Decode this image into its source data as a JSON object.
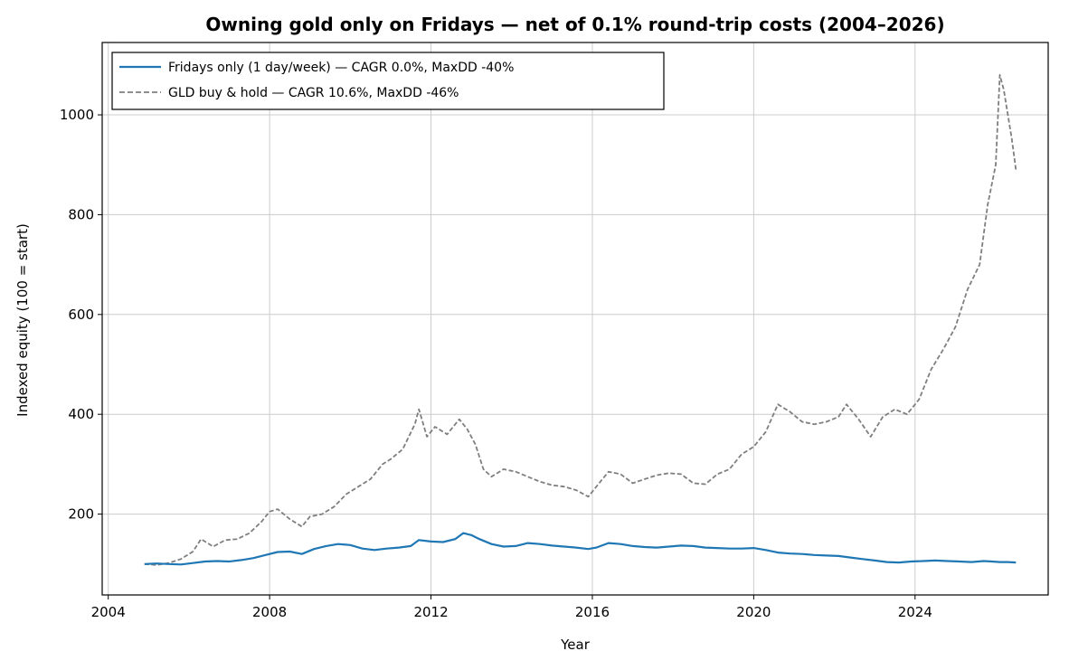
{
  "chart_data": {
    "type": "line",
    "title": "Owning gold only on Fridays — net of 0.1% round-trip costs (2004–2026)",
    "xlabel": "Year",
    "ylabel": "Indexed equity (100 = start)",
    "xlim": [
      2003.85,
      2027.3
    ],
    "ylim": [
      38,
      1145
    ],
    "x_ticks": [
      2004,
      2008,
      2012,
      2016,
      2020,
      2024
    ],
    "y_ticks": [
      200,
      400,
      600,
      800,
      1000
    ],
    "grid": true,
    "legend_position": "top-left",
    "series": [
      {
        "name": "Fridays only (1 day/week) — CAGR 0.0%, MaxDD -40%",
        "color": "#1f77b4",
        "style": "solid",
        "x": [
          2004.9,
          2005.2,
          2005.5,
          2005.8,
          2006.1,
          2006.4,
          2006.7,
          2007.0,
          2007.3,
          2007.6,
          2007.9,
          2008.2,
          2008.5,
          2008.8,
          2009.1,
          2009.4,
          2009.7,
          2010.0,
          2010.3,
          2010.6,
          2010.9,
          2011.2,
          2011.5,
          2011.7,
          2012.0,
          2012.3,
          2012.6,
          2012.8,
          2013.0,
          2013.2,
          2013.5,
          2013.8,
          2014.1,
          2014.4,
          2014.7,
          2015.0,
          2015.3,
          2015.6,
          2015.9,
          2016.1,
          2016.4,
          2016.7,
          2017.0,
          2017.3,
          2017.6,
          2017.9,
          2018.2,
          2018.5,
          2018.8,
          2019.1,
          2019.4,
          2019.7,
          2020.0,
          2020.3,
          2020.6,
          2020.9,
          2021.2,
          2021.5,
          2021.8,
          2022.1,
          2022.4,
          2022.7,
          2023.0,
          2023.3,
          2023.6,
          2023.9,
          2024.2,
          2024.5,
          2024.8,
          2025.1,
          2025.4,
          2025.7,
          2025.9,
          2026.1,
          2026.3,
          2026.5
        ],
        "y": [
          100,
          101,
          100,
          99,
          102,
          105,
          106,
          105,
          108,
          112,
          118,
          124,
          125,
          120,
          130,
          136,
          140,
          138,
          131,
          128,
          131,
          133,
          136,
          148,
          145,
          144,
          150,
          162,
          158,
          150,
          140,
          135,
          136,
          142,
          140,
          137,
          135,
          133,
          130,
          133,
          142,
          140,
          136,
          134,
          133,
          135,
          137,
          136,
          133,
          132,
          131,
          131,
          132,
          128,
          123,
          121,
          120,
          118,
          117,
          116,
          113,
          110,
          107,
          104,
          103,
          105,
          106,
          107,
          106,
          105,
          104,
          106,
          105,
          104,
          104,
          103
        ]
      },
      {
        "name": "GLD buy & hold — CAGR 10.6%, MaxDD -46%",
        "color": "#7f7f7f",
        "style": "dashed",
        "x": [
          2004.9,
          2005.2,
          2005.5,
          2005.8,
          2006.1,
          2006.3,
          2006.6,
          2006.9,
          2007.2,
          2007.5,
          2007.8,
          2008.0,
          2008.2,
          2008.5,
          2008.8,
          2009.0,
          2009.3,
          2009.6,
          2009.9,
          2010.2,
          2010.5,
          2010.8,
          2011.0,
          2011.3,
          2011.6,
          2011.7,
          2011.9,
          2012.1,
          2012.4,
          2012.7,
          2012.9,
          2013.1,
          2013.3,
          2013.5,
          2013.8,
          2014.1,
          2014.4,
          2014.7,
          2015.0,
          2015.3,
          2015.6,
          2015.9,
          2016.1,
          2016.4,
          2016.7,
          2017.0,
          2017.3,
          2017.6,
          2017.9,
          2018.2,
          2018.5,
          2018.8,
          2019.1,
          2019.4,
          2019.7,
          2020.0,
          2020.3,
          2020.6,
          2020.9,
          2021.2,
          2021.5,
          2021.8,
          2022.1,
          2022.3,
          2022.6,
          2022.9,
          2023.2,
          2023.5,
          2023.8,
          2024.1,
          2024.4,
          2024.7,
          2025.0,
          2025.3,
          2025.6,
          2025.8,
          2026.0,
          2026.1,
          2026.2,
          2026.4,
          2026.5
        ],
        "y": [
          100,
          98,
          102,
          110,
          125,
          150,
          135,
          148,
          150,
          162,
          185,
          205,
          210,
          190,
          175,
          195,
          200,
          215,
          240,
          255,
          270,
          300,
          310,
          330,
          380,
          410,
          355,
          375,
          360,
          390,
          370,
          340,
          290,
          275,
          290,
          285,
          275,
          265,
          258,
          255,
          248,
          235,
          255,
          285,
          280,
          262,
          270,
          278,
          282,
          280,
          262,
          260,
          280,
          290,
          320,
          335,
          365,
          420,
          405,
          385,
          380,
          385,
          395,
          420,
          390,
          355,
          395,
          410,
          400,
          430,
          490,
          530,
          575,
          650,
          700,
          820,
          900,
          1080,
          1050,
          950,
          890
        ]
      }
    ]
  }
}
